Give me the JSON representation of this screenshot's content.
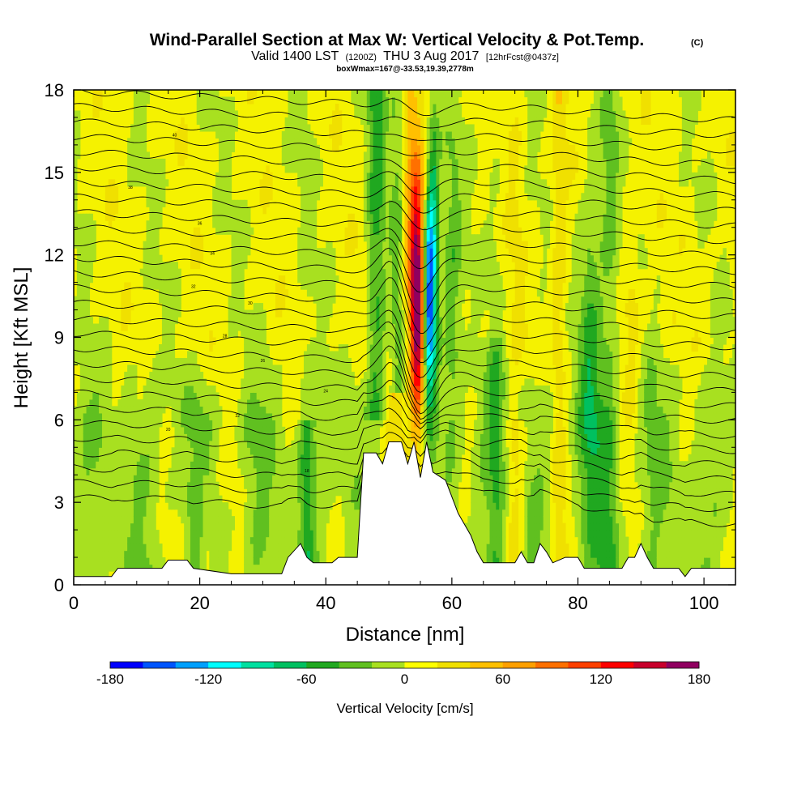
{
  "chart_data": {
    "type": "heatmap",
    "title": "Wind-Parallel Section at Max W: Vertical Velocity & Pot.Temp.",
    "copyright": "(C)",
    "subtitle": {
      "valid": "Valid 1400 LST",
      "utc": "(1200Z)",
      "date": "THU 3 Aug 2017",
      "forecast": "[12hrFcst@0437z]"
    },
    "box_info": "boxWmax=167@-33.53,19.39,2778m",
    "xlabel": "Distance [nm]",
    "ylabel": "Height [Kft MSL]",
    "xlim": [
      0,
      105
    ],
    "ylim": [
      0,
      18
    ],
    "xticks": [
      "0",
      "20",
      "40",
      "60",
      "80",
      "100"
    ],
    "yticks": [
      "0",
      "3",
      "6",
      "9",
      "12",
      "15",
      "18"
    ],
    "colorbar": {
      "label": "Vertical Velocity [cm/s]",
      "tick_labels": [
        "-180",
        "-120",
        "-60",
        "0",
        "60",
        "120",
        "180"
      ],
      "range": [
        -180,
        180
      ],
      "step": 20,
      "colors": [
        "#0000ff",
        "#0055ff",
        "#00a0ff",
        "#00ffff",
        "#00e0a0",
        "#00c060",
        "#20a820",
        "#60c020",
        "#a8e020",
        "#ffff00",
        "#f0e000",
        "#ffc000",
        "#ffa000",
        "#ff7000",
        "#ff4000",
        "#ff0000",
        "#c8002c",
        "#900060"
      ]
    },
    "contour_labels": [
      "40",
      "38",
      "36",
      "34",
      "32",
      "30",
      "28",
      "26",
      "24",
      "22",
      "20",
      "18"
    ],
    "max_w_cm_s": 167,
    "max_w_location_nm": 55.5,
    "terrain_peak_kft": 5.2,
    "terrain_peak_nm": 54
  }
}
